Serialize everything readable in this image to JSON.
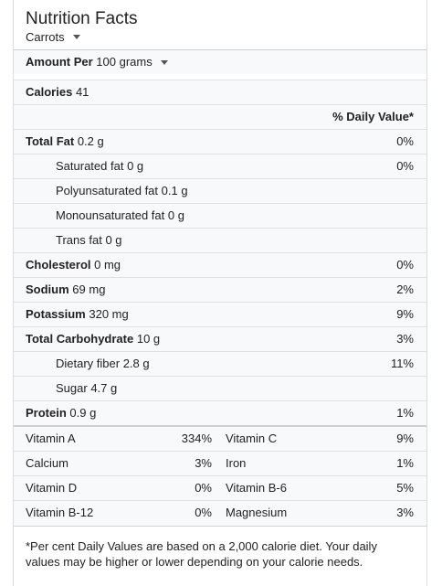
{
  "header": {
    "title": "Nutrition Facts",
    "food": "Carrots"
  },
  "amount": {
    "label": "Amount Per",
    "value": "100 grams"
  },
  "calories": {
    "label": "Calories",
    "value": "41"
  },
  "dv_header": "% Daily Value*",
  "nutrients": [
    {
      "label": "Total Fat",
      "amount": "0.2 g",
      "pct": "0%"
    },
    {
      "label": "Saturated fat",
      "amount": "0 g",
      "pct": "0%"
    },
    {
      "label": "Polyunsaturated fat",
      "amount": "0.1 g",
      "pct": ""
    },
    {
      "label": "Monounsaturated fat",
      "amount": "0 g",
      "pct": ""
    },
    {
      "label": "Trans fat",
      "amount": "0 g",
      "pct": ""
    },
    {
      "label": "Cholesterol",
      "amount": "0 mg",
      "pct": "0%"
    },
    {
      "label": "Sodium",
      "amount": "69 mg",
      "pct": "2%"
    },
    {
      "label": "Potassium",
      "amount": "320 mg",
      "pct": "9%"
    },
    {
      "label": "Total Carbohydrate",
      "amount": "10 g",
      "pct": "3%"
    },
    {
      "label": "Dietary fiber",
      "amount": "2.8 g",
      "pct": "11%"
    },
    {
      "label": "Sugar",
      "amount": "4.7 g",
      "pct": ""
    },
    {
      "label": "Protein",
      "amount": "0.9 g",
      "pct": "1%"
    }
  ],
  "vitamins": [
    {
      "n1": "Vitamin A",
      "p1": "334%",
      "n2": "Vitamin C",
      "p2": "9%"
    },
    {
      "n1": "Calcium",
      "p1": "3%",
      "n2": "Iron",
      "p2": "1%"
    },
    {
      "n1": "Vitamin D",
      "p1": "0%",
      "n2": "Vitamin B-6",
      "p2": "5%"
    },
    {
      "n1": "Vitamin B-12",
      "p1": "0%",
      "n2": "Magnesium",
      "p2": "3%"
    }
  ],
  "footnote": "*Per cent Daily Values are based on a 2,000 calorie diet. Your daily values may be higher or lower depending on your calorie needs.",
  "colors": {
    "row_bg": "#f8f9fa",
    "border": "#dadce0",
    "text": "#222222"
  },
  "icons": {
    "food_dropdown": "chevron-down-icon",
    "amount_dropdown": "chevron-down-icon"
  }
}
